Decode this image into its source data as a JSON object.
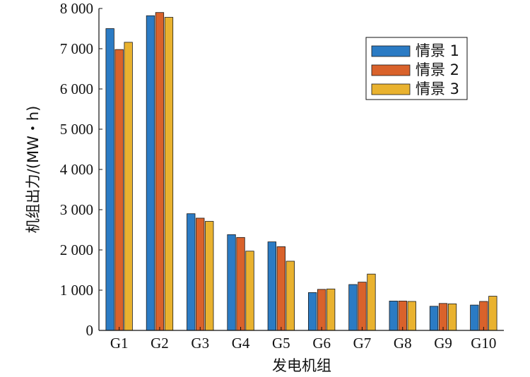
{
  "chart_data": {
    "type": "bar",
    "xlabel": "发电机组",
    "ylabel": "机组出力/(MW・h)",
    "ylim": [
      0,
      8000
    ],
    "yticks": [
      0,
      1000,
      2000,
      3000,
      4000,
      5000,
      6000,
      7000,
      8000
    ],
    "ytick_labels": [
      "0",
      "1 000",
      "2 000",
      "3 000",
      "4 000",
      "5 000",
      "6 000",
      "7 000",
      "8 000"
    ],
    "categories": [
      "G1",
      "G2",
      "G3",
      "G4",
      "G5",
      "G6",
      "G7",
      "G8",
      "G9",
      "G10"
    ],
    "series": [
      {
        "name": "情景 1",
        "color": "#2b7bc4",
        "values": [
          7500,
          7820,
          2900,
          2380,
          2200,
          940,
          1140,
          730,
          600,
          630
        ]
      },
      {
        "name": "情景 2",
        "color": "#d9622b",
        "values": [
          6980,
          7900,
          2790,
          2310,
          2080,
          1020,
          1200,
          730,
          670,
          720
        ]
      },
      {
        "name": "情景 3",
        "color": "#e9b22f",
        "values": [
          7160,
          7780,
          2710,
          1970,
          1720,
          1030,
          1400,
          720,
          660,
          850
        ]
      }
    ],
    "legend_position": "top-right",
    "grid": false
  }
}
